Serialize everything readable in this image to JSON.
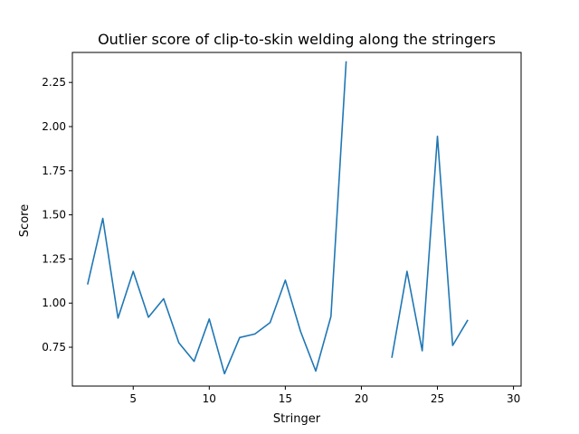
{
  "chart_data": {
    "type": "line",
    "title": "Outlier score of clip-to-skin welding along the stringers",
    "xlabel": "Stringer",
    "ylabel": "Score",
    "xlim": [
      1.0,
      30.5
    ],
    "ylim": [
      0.53,
      2.42
    ],
    "xticks": [
      5,
      10,
      15,
      20,
      25,
      30
    ],
    "yticks": [
      0.75,
      1.0,
      1.25,
      1.5,
      1.75,
      2.0,
      2.25
    ],
    "ytick_labels": [
      "0.75",
      "1.00",
      "1.25",
      "1.50",
      "1.75",
      "2.00",
      "2.25"
    ],
    "grid": false,
    "series": [
      {
        "color": "#1f77b4",
        "points": [
          [
            2,
            1.105
          ],
          [
            3,
            1.48
          ],
          [
            4,
            0.915
          ],
          [
            5,
            1.18
          ],
          [
            6,
            0.92
          ],
          [
            7,
            1.025
          ],
          [
            8,
            0.775
          ],
          [
            9,
            0.67
          ],
          [
            10,
            0.91
          ],
          [
            11,
            0.6
          ],
          [
            12,
            0.805
          ],
          [
            13,
            0.825
          ],
          [
            14,
            0.89
          ],
          [
            15,
            1.13
          ],
          [
            16,
            0.84
          ],
          [
            17,
            0.615
          ],
          [
            18,
            0.925
          ],
          [
            19,
            2.37
          ],
          [
            20,
            null
          ],
          [
            21,
            null
          ],
          [
            22,
            0.69
          ],
          [
            23,
            1.18
          ],
          [
            24,
            0.73
          ],
          [
            25,
            1.945
          ],
          [
            26,
            0.76
          ],
          [
            27,
            0.905
          ]
        ]
      }
    ]
  }
}
